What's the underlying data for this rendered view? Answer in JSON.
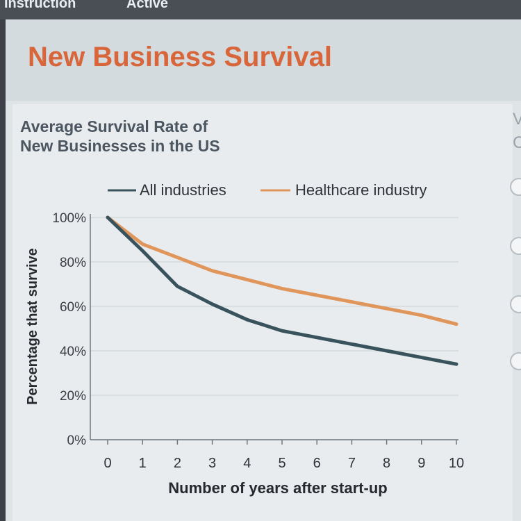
{
  "tabs": [
    "Instruction",
    "Active"
  ],
  "header": {
    "title": "New Business Survival"
  },
  "right_edge": [
    "V",
    "C"
  ],
  "colors": {
    "all_industries": "#38535c",
    "healthcare": "#e0965b",
    "title": "#d9653a"
  },
  "chart_data": {
    "type": "line",
    "title": "Average Survival Rate of New Businesses in the US",
    "title_lines": [
      "Average Survival Rate of",
      "New Businesses in the US"
    ],
    "xlabel": "Number of years after start-up",
    "ylabel": "Percentage that survive",
    "x": [
      0,
      1,
      2,
      3,
      4,
      5,
      6,
      7,
      8,
      9,
      10
    ],
    "x_ticks": [
      "0",
      "1",
      "2",
      "3",
      "4",
      "5",
      "6",
      "7",
      "8",
      "9",
      "10"
    ],
    "y_ticks": [
      "0%",
      "20%",
      "40%",
      "60%",
      "80%",
      "100%"
    ],
    "ylim": [
      0,
      100
    ],
    "xlim": [
      0,
      10
    ],
    "grid": true,
    "legend_position": "top",
    "series": [
      {
        "name": "All industries",
        "values": [
          100,
          85,
          69,
          61,
          54,
          49,
          46,
          43,
          40,
          37,
          34
        ]
      },
      {
        "name": "Healthcare industry",
        "values": [
          100,
          88,
          82,
          76,
          72,
          68,
          65,
          62,
          59,
          56,
          52
        ]
      }
    ]
  }
}
